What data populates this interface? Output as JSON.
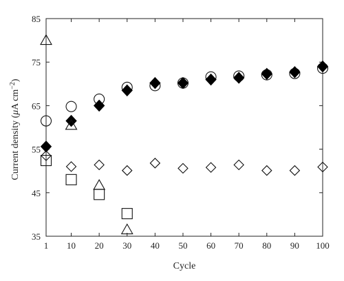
{
  "chart_data": {
    "type": "scatter",
    "title": "",
    "xlabel": "Cycle",
    "ylabel_parts": {
      "prefix": "Current density (",
      "mu": "μ",
      "unit": "A cm",
      "sup": "−2",
      "suffix": ")"
    },
    "xlim": [
      1,
      100
    ],
    "ylim": [
      35,
      85
    ],
    "xticks": [
      1,
      10,
      20,
      30,
      40,
      50,
      60,
      70,
      80,
      90,
      100
    ],
    "yticks": [
      35,
      45,
      55,
      65,
      75,
      85
    ],
    "grid": false,
    "legend": "none",
    "series": [
      {
        "marker": "circle-open",
        "x": [
          1,
          10,
          20,
          30,
          40,
          50,
          60,
          70,
          80,
          90,
          100
        ],
        "y": [
          61.5,
          64.8,
          66.5,
          69.2,
          69.6,
          70.2,
          71.6,
          71.8,
          72.1,
          72.4,
          73.6
        ]
      },
      {
        "marker": "diamond-filled",
        "x": [
          1,
          10,
          20,
          30,
          40,
          50,
          60,
          70,
          80,
          90,
          100
        ],
        "y": [
          55.6,
          61.5,
          65.0,
          68.5,
          70.2,
          70.2,
          71.0,
          71.4,
          72.3,
          72.7,
          74.0
        ]
      },
      {
        "marker": "diamond-open",
        "x": [
          1,
          10,
          20,
          30,
          40,
          50,
          60,
          70,
          80,
          90,
          100
        ],
        "y": [
          53.5,
          51.0,
          51.4,
          50.1,
          51.8,
          50.6,
          50.8,
          51.4,
          50.1,
          50.1,
          50.9
        ]
      },
      {
        "marker": "triangle-open",
        "x": [
          1,
          10,
          20,
          30
        ],
        "y": [
          80.0,
          60.5,
          46.7,
          36.5
        ]
      },
      {
        "marker": "square-open",
        "x": [
          1,
          10,
          20,
          30
        ],
        "y": [
          52.4,
          48.0,
          44.6,
          40.2
        ]
      }
    ]
  }
}
